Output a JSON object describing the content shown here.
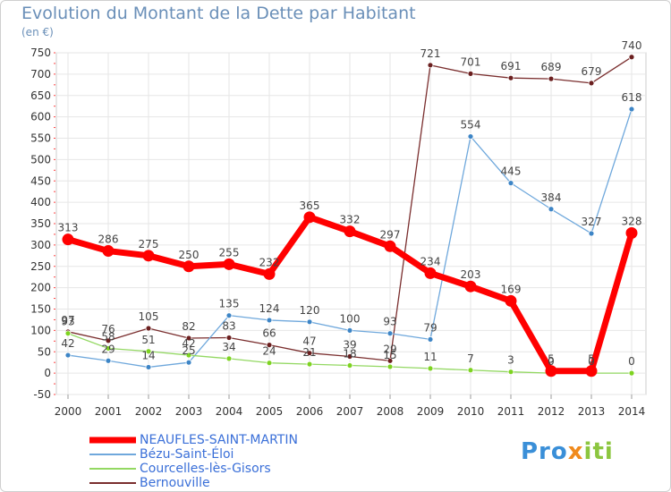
{
  "header": {
    "title": "Evolution du Montant de la Dette par Habitant",
    "unit": "(en €)"
  },
  "logo": {
    "text": "Proxiti"
  },
  "colors": {
    "grid": "#e6e6e6",
    "axis_text": "#333333",
    "label_text": "#444444"
  },
  "chart_data": {
    "type": "line",
    "title": "Evolution du Montant de la Dette par Habitant",
    "ylabel": "(en €)",
    "xlabel": "",
    "x": [
      2000,
      2001,
      2002,
      2003,
      2004,
      2005,
      2006,
      2007,
      2008,
      2009,
      2010,
      2011,
      2012,
      2013,
      2014
    ],
    "ylim": [
      -50,
      750
    ],
    "yticks": [
      -50,
      0,
      50,
      100,
      150,
      200,
      250,
      300,
      350,
      400,
      450,
      500,
      550,
      600,
      650,
      700,
      750
    ],
    "grid": true,
    "legend_position": "bottom-left",
    "series": [
      {
        "name": "NEAUFLES-SAINT-MARTIN",
        "color": "#ff0000",
        "marker_color": "#ff0000",
        "width": 7,
        "values": [
          313,
          286,
          275,
          250,
          255,
          232,
          365,
          332,
          297,
          234,
          203,
          169,
          5,
          5,
          328
        ],
        "labels": [
          "313",
          "286",
          "275",
          "250",
          "255",
          "232",
          "365",
          "332",
          "297",
          "234",
          "203",
          "169",
          "5",
          "5",
          "328"
        ]
      },
      {
        "name": "Bézu-Saint-Éloi",
        "color": "#6fa8dc",
        "marker_color": "#3d85c6",
        "width": 1.3,
        "values": [
          42,
          29,
          14,
          25,
          135,
          124,
          120,
          100,
          93,
          79,
          554,
          445,
          384,
          327,
          618
        ],
        "labels": [
          "42",
          "29",
          "14",
          "25",
          "135",
          "124",
          "120",
          "100",
          "93",
          "79",
          "554",
          "445",
          "384",
          "327",
          "618"
        ]
      },
      {
        "name": "Courcelles-lès-Gisors",
        "color": "#93d862",
        "marker_color": "#7ed321",
        "width": 1.3,
        "values": [
          93,
          58,
          51,
          42,
          34,
          24,
          21,
          18,
          15,
          11,
          7,
          3,
          0,
          0,
          0
        ],
        "labels": [
          "93",
          "58",
          "51",
          "42",
          "34",
          "24",
          "21",
          "18",
          "15",
          "11",
          "7",
          "3",
          "0",
          "0",
          "0"
        ]
      },
      {
        "name": "Bernouville",
        "color": "#7a2e2e",
        "marker_color": "#6b1f1f",
        "width": 1.3,
        "values": [
          97,
          76,
          105,
          82,
          83,
          66,
          47,
          39,
          29,
          721,
          701,
          691,
          689,
          679,
          740
        ],
        "labels": [
          "97",
          "76",
          "105",
          "82",
          "83",
          "66",
          "47",
          "39",
          "29",
          "721",
          "701",
          "691",
          "689",
          "679",
          "740"
        ]
      }
    ]
  }
}
